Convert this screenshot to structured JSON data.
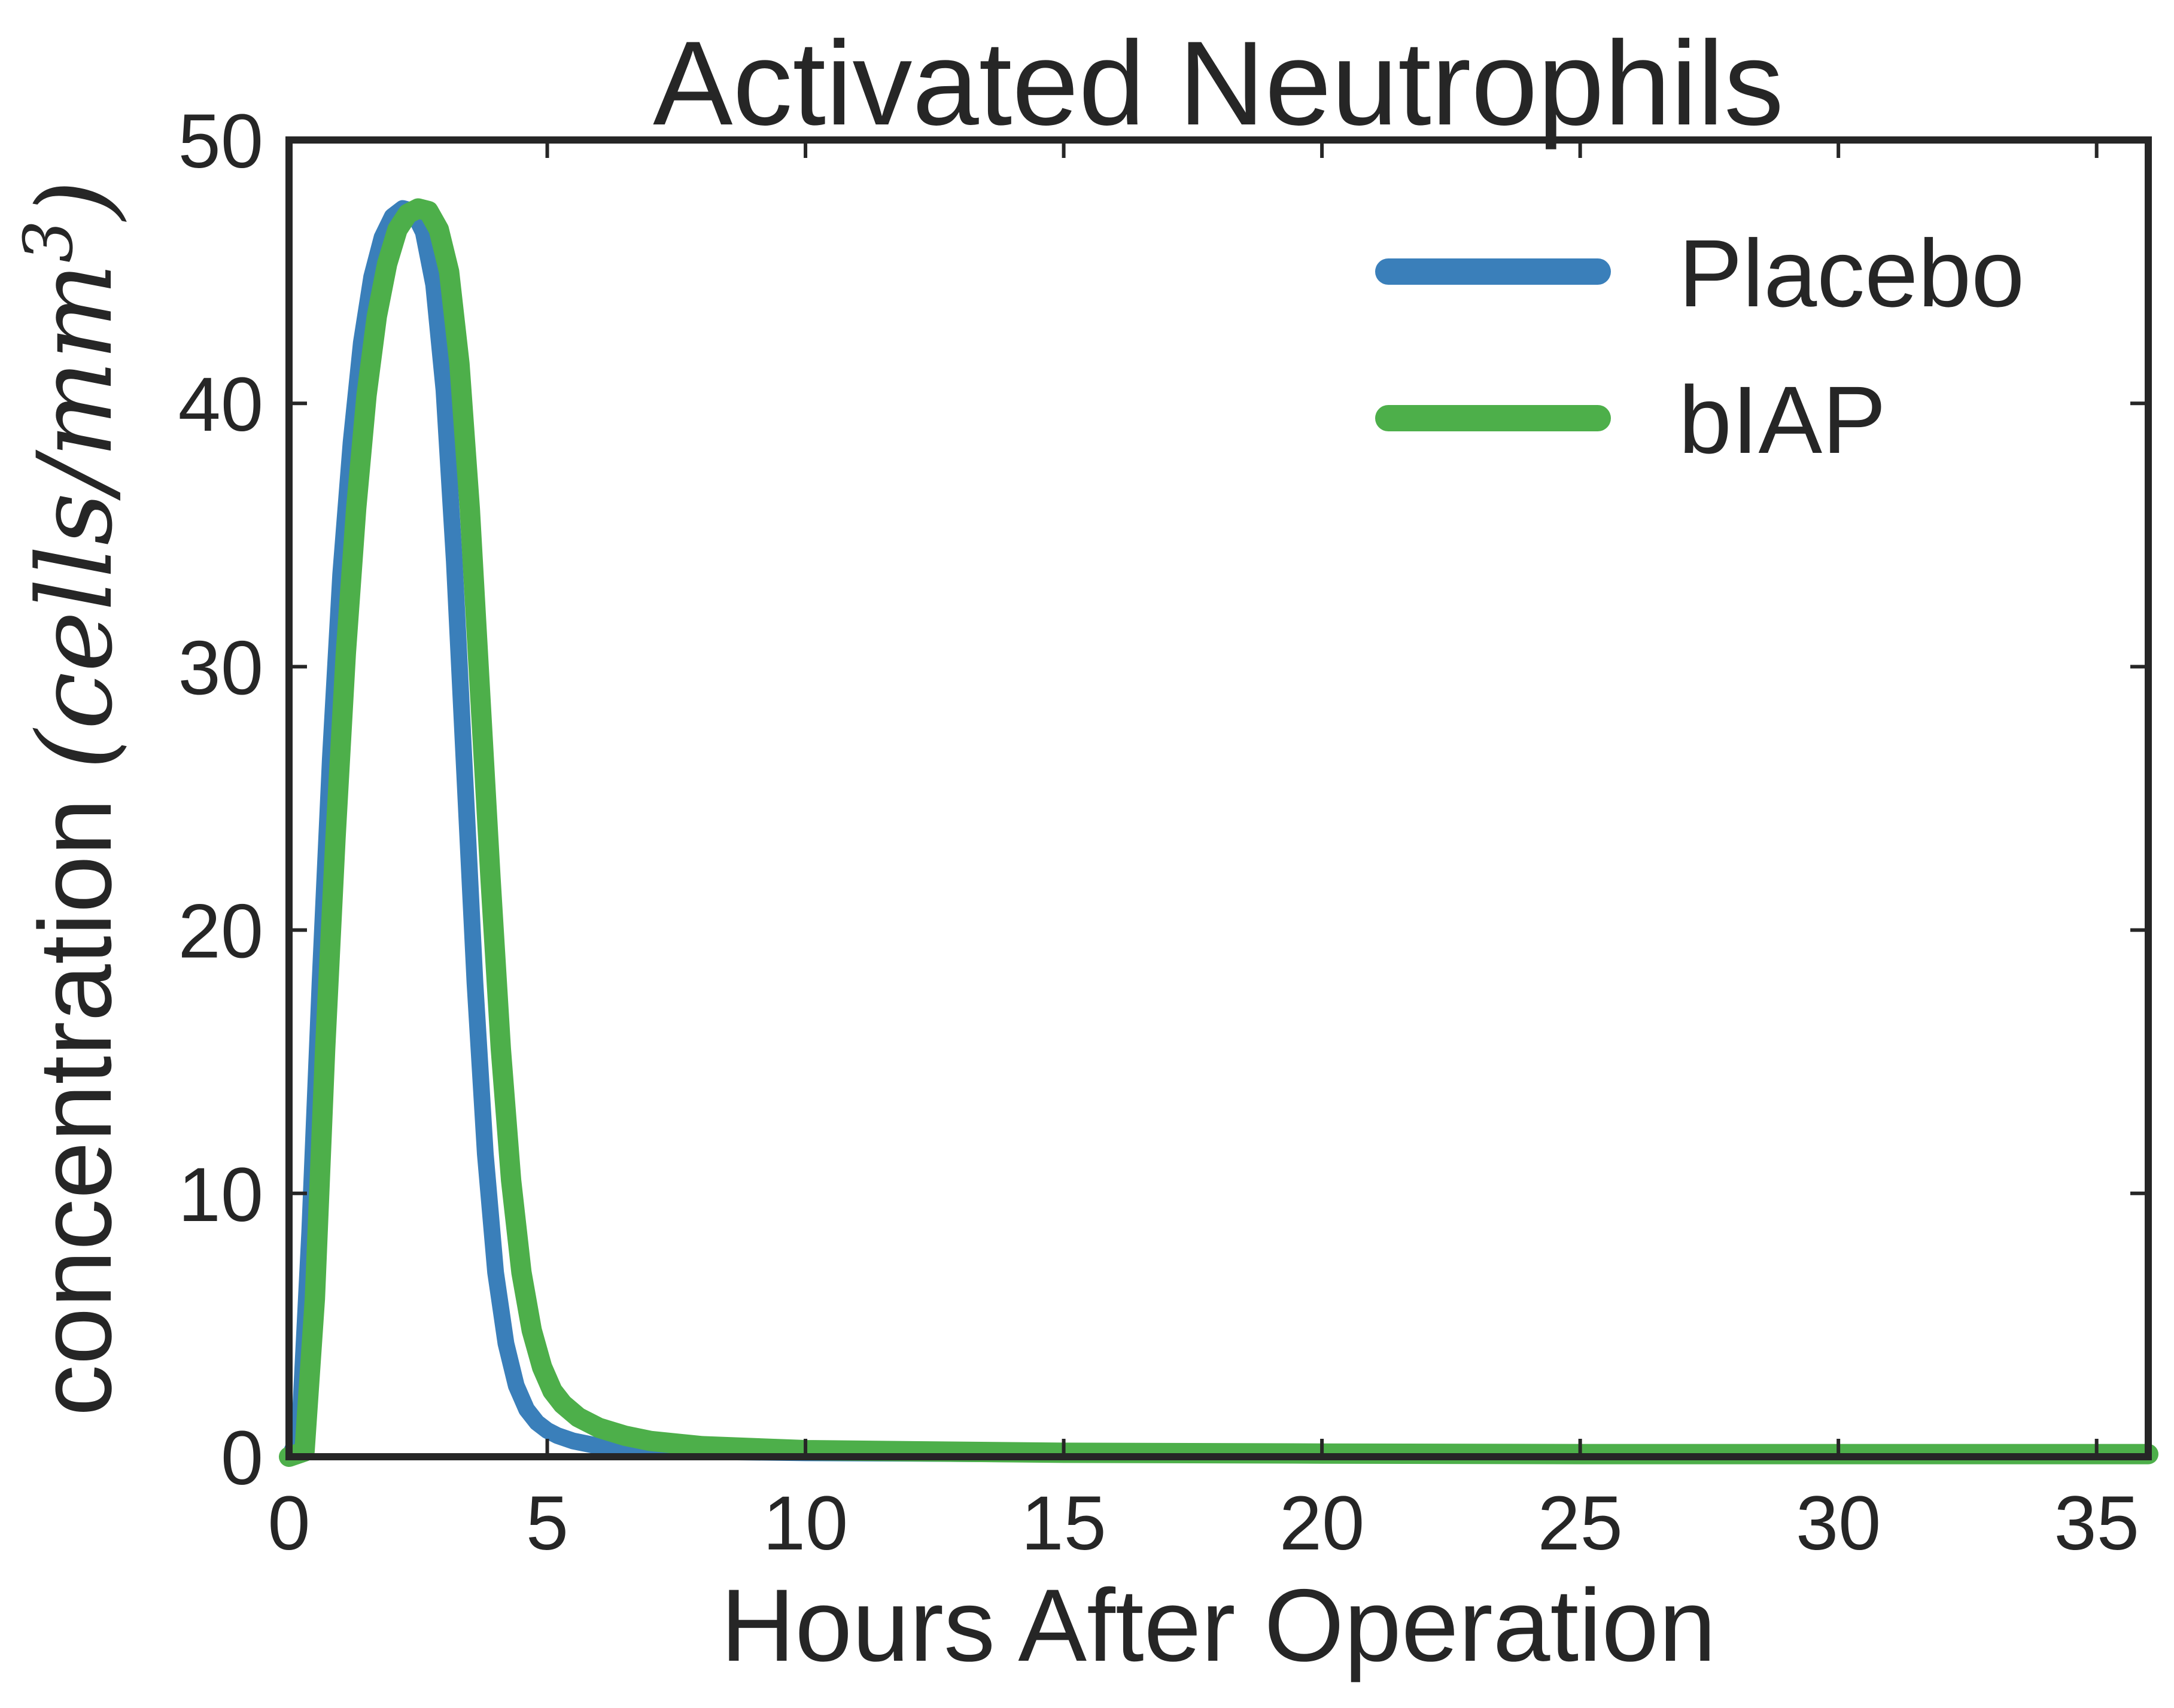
{
  "chart_data": {
    "type": "line",
    "title": "Activated Neutrophils",
    "xlabel": "Hours After Operation",
    "ylabel_prefix": "concentration ",
    "ylabel_math": "(cells/mm",
    "ylabel_superscript": "3",
    "ylabel_close": ")",
    "xlim": [
      0,
      36
    ],
    "ylim": [
      0,
      50
    ],
    "xticks": [
      0,
      5,
      10,
      15,
      20,
      25,
      30,
      35
    ],
    "yticks": [
      0,
      10,
      20,
      30,
      40,
      50
    ],
    "grid": false,
    "legend_position": "top-right",
    "series": [
      {
        "name": "Placebo",
        "color": "#3a7fba",
        "x": [
          0.0,
          0.2,
          0.4,
          0.6,
          0.8,
          1.0,
          1.2,
          1.4,
          1.6,
          1.8,
          2.0,
          2.2,
          2.4,
          2.6,
          2.8,
          3.0,
          3.2,
          3.4,
          3.6,
          3.8,
          4.0,
          4.2,
          4.4,
          4.6,
          4.8,
          5.0,
          5.2,
          5.5,
          6.0,
          6.5,
          7.0,
          8.0,
          10.0,
          15.0,
          20.0,
          25.0,
          30.0,
          36.0
        ],
        "y": [
          0.0,
          0.8,
          8.5,
          18.0,
          26.5,
          33.5,
          38.5,
          42.3,
          44.8,
          46.3,
          47.1,
          47.4,
          47.3,
          46.5,
          44.5,
          40.5,
          34.0,
          26.0,
          18.0,
          11.5,
          7.0,
          4.3,
          2.7,
          1.8,
          1.3,
          1.0,
          0.8,
          0.6,
          0.4,
          0.3,
          0.25,
          0.2,
          0.15,
          0.1,
          0.08,
          0.06,
          0.05,
          0.04
        ]
      },
      {
        "name": "bIAP",
        "color": "#4daf4a",
        "x": [
          0.0,
          0.3,
          0.5,
          0.7,
          0.9,
          1.1,
          1.3,
          1.5,
          1.7,
          1.9,
          2.1,
          2.3,
          2.5,
          2.7,
          2.9,
          3.1,
          3.3,
          3.5,
          3.7,
          3.9,
          4.1,
          4.3,
          4.5,
          4.7,
          4.9,
          5.1,
          5.3,
          5.6,
          6.0,
          6.5,
          7.0,
          8.0,
          10.0,
          15.0,
          20.0,
          25.0,
          30.0,
          36.0
        ],
        "y": [
          0.0,
          0.2,
          6.0,
          15.5,
          23.5,
          30.5,
          36.0,
          40.3,
          43.3,
          45.3,
          46.6,
          47.2,
          47.4,
          47.3,
          46.6,
          45.0,
          41.5,
          36.0,
          29.0,
          22.0,
          15.5,
          10.5,
          7.0,
          4.8,
          3.4,
          2.5,
          2.0,
          1.5,
          1.1,
          0.8,
          0.6,
          0.4,
          0.25,
          0.15,
          0.12,
          0.1,
          0.1,
          0.1
        ]
      }
    ]
  }
}
